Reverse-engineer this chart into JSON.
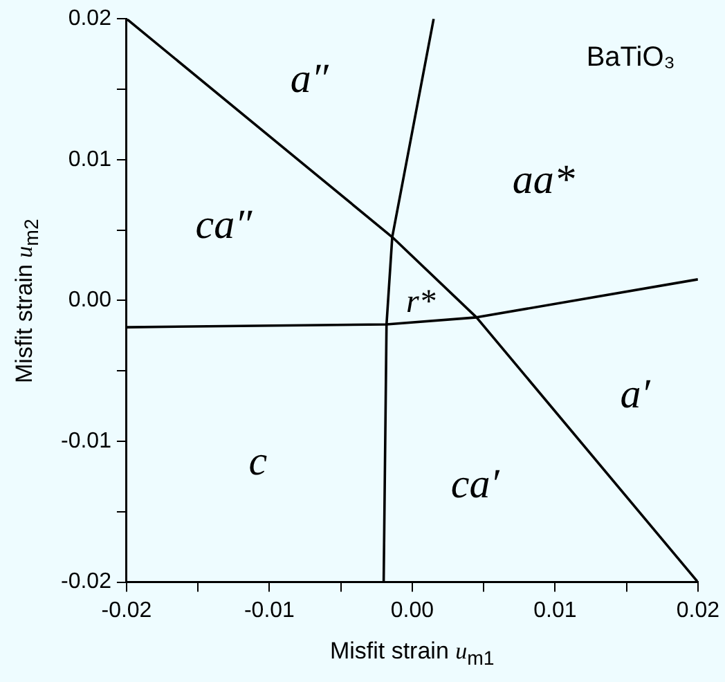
{
  "chart_data": {
    "type": "line",
    "xlabel": "Misfit strain u$_{m1}$",
    "ylabel": "Misfit strain u$_{m2}$",
    "xlim": [
      -0.02,
      0.02
    ],
    "ylim": [
      -0.02,
      0.02
    ],
    "xticks": [
      -0.02,
      {
        "value": -0.015,
        "label": null
      },
      -0.01,
      {
        "value": -0.005,
        "label": null
      },
      {
        "value": 0,
        "label": "0.00"
      },
      {
        "value": 0.005,
        "label": null
      },
      0.01,
      {
        "value": 0.015,
        "label": null
      },
      0.02
    ],
    "yticks": [
      -0.02,
      {
        "value": -0.015,
        "label": null
      },
      -0.01,
      {
        "value": -0.005,
        "label": null
      },
      {
        "value": 0,
        "label": "0.00"
      },
      {
        "value": 0.005,
        "label": null
      },
      0.01,
      {
        "value": 0.015,
        "label": null
      },
      0.02
    ],
    "grid": false,
    "legend": false,
    "marker": "none",
    "line_style": "solid",
    "series": [
      {
        "color": "#000000",
        "x": [
          -0.02,
          -0.0014,
          0.0045,
          0.02
        ],
        "values": [
          0.02,
          0.0045,
          -0.0012,
          -0.02
        ]
      },
      {
        "color": "#000000",
        "x": [
          0.0015,
          -0.0014,
          -0.0018,
          -0.002
        ],
        "values": [
          0.02,
          0.0045,
          -0.0017,
          -0.02
        ]
      },
      {
        "color": "#000000",
        "x": [
          -0.02,
          -0.0018,
          0.0045,
          0.02
        ],
        "values": [
          -0.0019,
          -0.0017,
          -0.0012,
          0.0015
        ]
      }
    ],
    "annotations": [
      "BaTiO₃",
      "a″",
      "aa*",
      "ca″",
      "r*",
      "a′",
      "c",
      "ca′"
    ]
  }
}
